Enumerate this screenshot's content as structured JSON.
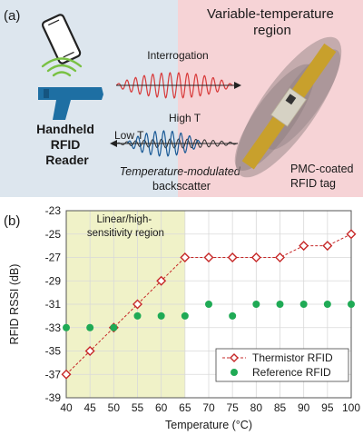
{
  "panel_a": {
    "label": "(a)",
    "reader_label": [
      "Handheld",
      "RFID",
      "Reader"
    ],
    "region_label": [
      "Variable-temperature",
      "region"
    ],
    "interrogation_label": "Interrogation",
    "high_t_label": "High T",
    "low_t_label": "Low T",
    "backscatter_label": [
      "Temperature-modulated",
      "backscatter"
    ],
    "tag_label": [
      "PMC-coated",
      "RFID tag"
    ],
    "colors": {
      "left_bg": "#dde6ee",
      "right_bg": "#f6d3d6",
      "reader": "#1e6fa3",
      "signal_arcs": "#79c143",
      "wave_red": "#d83a3a",
      "wave_blue": "#1a5a96",
      "tag_gold": "#c8a02c",
      "blob": "#9a8a8c"
    }
  },
  "panel_b": {
    "label": "(b)",
    "region_label": [
      "Linear/high-",
      "sensitivity region"
    ]
  },
  "chart_data": {
    "type": "scatter",
    "xlabel": "Temperature (°C)",
    "ylabel": "RFID RSSI (dB)",
    "xlim": [
      40,
      100
    ],
    "ylim": [
      -39,
      -23
    ],
    "xticks": [
      40,
      45,
      50,
      55,
      60,
      65,
      70,
      75,
      80,
      85,
      90,
      95,
      100
    ],
    "yticks": [
      -39,
      -37,
      -35,
      -33,
      -31,
      -29,
      -27,
      -25,
      -23
    ],
    "grid": true,
    "legend_position": "bottom-right",
    "highlight_region": {
      "x_from": 40,
      "x_to": 65,
      "color": "#f0f2c8"
    },
    "series": [
      {
        "name": "Thermistor RFID",
        "color": "#c62828",
        "marker": "diamond",
        "line": "dashed",
        "x": [
          40,
          45,
          50,
          55,
          60,
          65,
          70,
          75,
          80,
          85,
          90,
          95,
          100
        ],
        "y": [
          -37,
          -35,
          -33,
          -31,
          -29,
          -27,
          -27,
          -27,
          -27,
          -27,
          -26,
          -26,
          -25
        ]
      },
      {
        "name": "Reference RFID",
        "color": "#1faa55",
        "marker": "circle",
        "line": "none",
        "x": [
          40,
          45,
          50,
          55,
          60,
          65,
          70,
          75,
          80,
          85,
          90,
          95,
          100
        ],
        "y": [
          -33,
          -33,
          -33,
          -32,
          -32,
          -32,
          -31,
          -32,
          -31,
          -31,
          -31,
          -31,
          -31
        ]
      }
    ]
  }
}
